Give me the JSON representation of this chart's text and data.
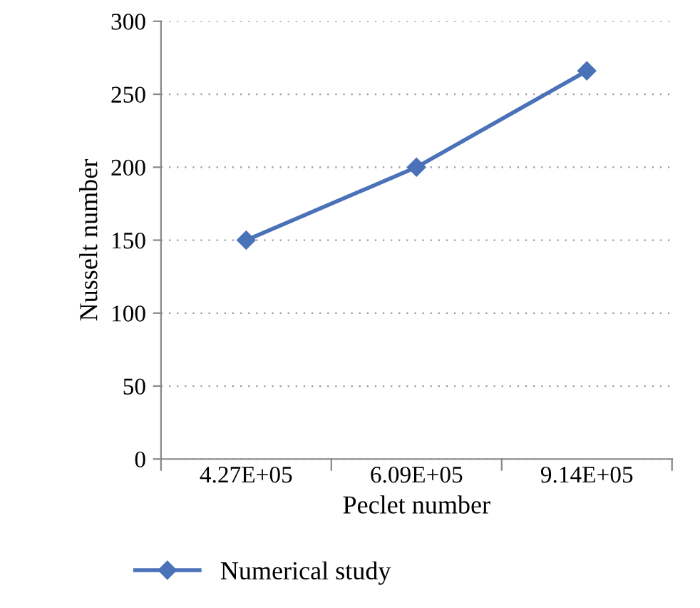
{
  "chart_data": {
    "type": "line",
    "xlabel": "Peclet number",
    "ylabel": "Nusselt number",
    "categories": [
      "4.27E+05",
      "6.09E+05",
      "9.14E+05"
    ],
    "series": [
      {
        "name": "Numerical study",
        "color": "#4a72b8",
        "values": [
          150,
          200,
          266
        ]
      }
    ],
    "ylim": [
      0,
      300
    ],
    "yticks": [
      0,
      50,
      100,
      150,
      200,
      250,
      300
    ],
    "grid": "y",
    "legend": "bottom",
    "marker": "diamond",
    "line_style": "solid"
  }
}
